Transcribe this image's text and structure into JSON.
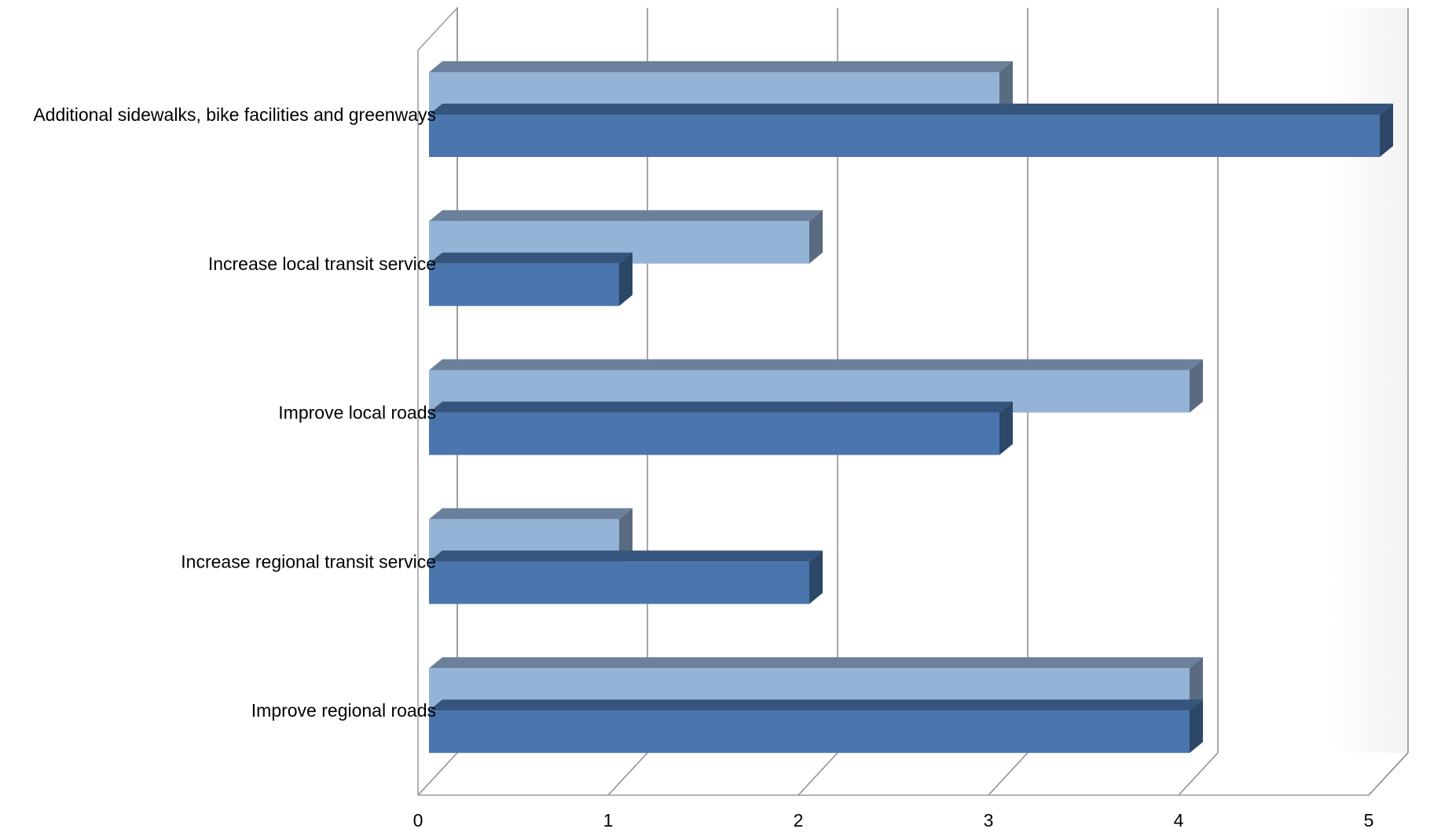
{
  "chart_data": {
    "type": "bar",
    "orientation": "horizontal",
    "three_d": true,
    "categories": [
      "Additional sidewalks, bike facilities and greenways",
      "Increase local transit service",
      "Improve local roads",
      "Increase regional transit service",
      "Improve regional roads"
    ],
    "series": [
      {
        "values": [
          3,
          2,
          4,
          1,
          4
        ],
        "color": "#95b3d7"
      },
      {
        "values": [
          5,
          1,
          3,
          2,
          4
        ],
        "color": "#4a76ad"
      }
    ],
    "xlim": [
      0,
      5
    ],
    "xticks": [
      "0",
      "1",
      "2",
      "3",
      "4",
      "5"
    ],
    "grid": true,
    "legend": "none"
  }
}
